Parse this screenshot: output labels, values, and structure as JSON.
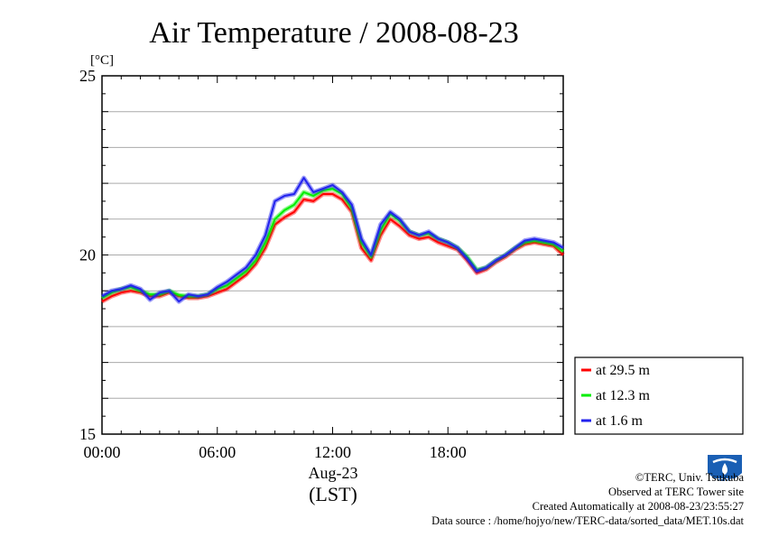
{
  "chart_data": {
    "type": "line",
    "title": "Air Temperature / 2008-08-23",
    "ylabel": "[°C]",
    "xlabel_date": "Aug-23",
    "xlabel_unit": "(LST)",
    "ylim": [
      15,
      25
    ],
    "y_ticks": [
      "15",
      "20",
      "25"
    ],
    "xlim_hours": [
      0,
      24
    ],
    "x_ticks": [
      "00:00",
      "06:00",
      "12:00",
      "18:00"
    ],
    "grid": "horizontal every 1 °C",
    "legend_position": "bottom-right, outside plot",
    "x_hours": [
      0,
      0.5,
      1,
      1.5,
      2,
      2.5,
      3,
      3.5,
      4,
      4.5,
      5,
      5.5,
      6,
      6.5,
      7,
      7.5,
      8,
      8.5,
      9,
      9.5,
      10,
      10.5,
      11,
      11.5,
      12,
      12.5,
      13,
      13.5,
      14,
      14.5,
      15,
      15.5,
      16,
      16.5,
      17,
      17.5,
      18,
      18.5,
      19,
      19.5,
      20,
      20.5,
      21,
      21.5,
      22,
      22.5,
      23,
      23.5,
      24
    ],
    "series": [
      {
        "name": "at 29.5 m",
        "color": "#ff0000",
        "values": [
          18.7,
          18.85,
          18.95,
          19.0,
          18.95,
          18.85,
          18.85,
          18.95,
          18.85,
          18.8,
          18.8,
          18.85,
          18.95,
          19.05,
          19.25,
          19.45,
          19.75,
          20.2,
          20.85,
          21.05,
          21.2,
          21.55,
          21.5,
          21.7,
          21.7,
          21.55,
          21.2,
          20.2,
          19.85,
          20.55,
          21.0,
          20.8,
          20.55,
          20.45,
          20.5,
          20.35,
          20.25,
          20.15,
          19.85,
          19.5,
          19.6,
          19.8,
          19.95,
          20.15,
          20.3,
          20.35,
          20.3,
          20.25,
          20.0
        ]
      },
      {
        "name": "at 12.3 m",
        "color": "#00ee00",
        "values": [
          18.8,
          18.95,
          19.05,
          19.1,
          19.0,
          18.9,
          18.9,
          19.0,
          18.88,
          18.85,
          18.85,
          18.9,
          19.05,
          19.15,
          19.35,
          19.55,
          19.85,
          20.35,
          21.0,
          21.25,
          21.4,
          21.75,
          21.65,
          21.8,
          21.85,
          21.7,
          21.3,
          20.35,
          19.95,
          20.7,
          21.15,
          20.95,
          20.65,
          20.55,
          20.6,
          20.45,
          20.35,
          20.2,
          19.95,
          19.58,
          19.65,
          19.85,
          20.0,
          20.2,
          20.35,
          20.4,
          20.35,
          20.3,
          20.1
        ]
      },
      {
        "name": "at 1.6 m",
        "color": "#2222ee",
        "values": [
          18.85,
          19.0,
          19.05,
          19.15,
          19.05,
          18.75,
          18.95,
          19.0,
          18.7,
          18.9,
          18.85,
          18.9,
          19.1,
          19.25,
          19.45,
          19.65,
          20.0,
          20.55,
          21.5,
          21.65,
          21.7,
          22.15,
          21.75,
          21.85,
          21.95,
          21.75,
          21.4,
          20.45,
          20.0,
          20.85,
          21.2,
          21.0,
          20.65,
          20.55,
          20.65,
          20.45,
          20.35,
          20.2,
          19.9,
          19.55,
          19.65,
          19.85,
          20.0,
          20.2,
          20.4,
          20.45,
          20.4,
          20.35,
          20.2
        ]
      }
    ]
  },
  "footer": {
    "copyright": "©TERC, Univ. Tsukuba",
    "site": "Observed at TERC Tower site",
    "created": "Created Automatically at 2008-08-23/23:55:27",
    "source": "Data source : /home/hojyo/new/TERC-data/sorted_data/MET.10s.dat"
  },
  "logo_text": "TERC"
}
